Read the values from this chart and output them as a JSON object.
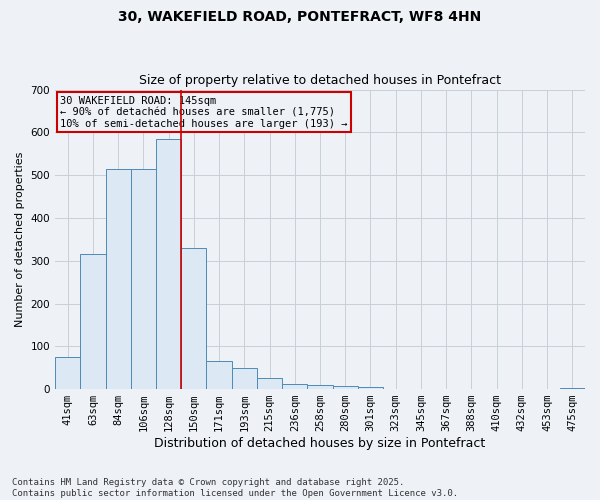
{
  "title1": "30, WAKEFIELD ROAD, PONTEFRACT, WF8 4HN",
  "title2": "Size of property relative to detached houses in Pontefract",
  "xlabel": "Distribution of detached houses by size in Pontefract",
  "ylabel": "Number of detached properties",
  "footer1": "Contains HM Land Registry data © Crown copyright and database right 2025.",
  "footer2": "Contains public sector information licensed under the Open Government Licence v3.0.",
  "annotation_title": "30 WAKEFIELD ROAD: 145sqm",
  "annotation_line2": "← 90% of detachéd houses are smaller (1,775)",
  "annotation_line3": "10% of semi-detached houses are larger (193) →",
  "bar_labels": [
    "41sqm",
    "63sqm",
    "84sqm",
    "106sqm",
    "128sqm",
    "150sqm",
    "171sqm",
    "193sqm",
    "215sqm",
    "236sqm",
    "258sqm",
    "280sqm",
    "301sqm",
    "323sqm",
    "345sqm",
    "367sqm",
    "388sqm",
    "410sqm",
    "432sqm",
    "453sqm",
    "475sqm"
  ],
  "bar_values": [
    75,
    315,
    515,
    515,
    585,
    330,
    65,
    50,
    25,
    13,
    10,
    8,
    5,
    0,
    0,
    0,
    0,
    0,
    0,
    0,
    3
  ],
  "bar_color": "#dce8f3",
  "bar_edge_color": "#4d8ab5",
  "red_line_x": 4.5,
  "red_line_color": "#cc0000",
  "annotation_box_color": "#cc0000",
  "ylim": [
    0,
    700
  ],
  "yticks": [
    0,
    100,
    200,
    300,
    400,
    500,
    600,
    700
  ],
  "background_color": "#eef2f7",
  "grid_color": "#c8d0d8",
  "title1_fontsize": 10,
  "title2_fontsize": 9,
  "xlabel_fontsize": 9,
  "ylabel_fontsize": 8,
  "tick_fontsize": 7.5,
  "footer_fontsize": 6.5,
  "ann_fontsize": 7.5
}
